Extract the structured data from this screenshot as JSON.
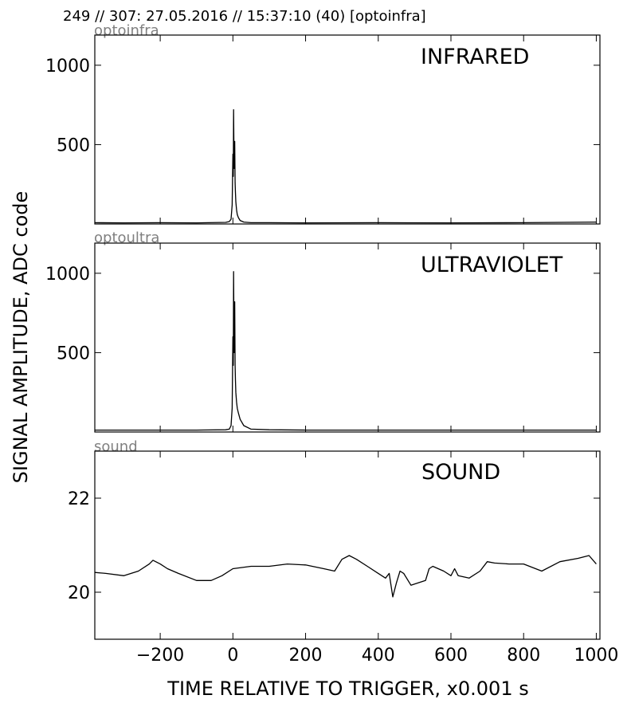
{
  "header": "249 // 307:   27.05.2016 // 15:37:10 (40)  [optoinfra]",
  "xlabel": "TIME RELATIVE TO TRIGGER,   x0.001 s",
  "ylabel": "SIGNAL AMPLITUDE,  ADC code",
  "chart_data": [
    {
      "type": "line",
      "corner_label": "optoinfra",
      "annotation": "INFRARED",
      "xlim": [
        -380,
        1010
      ],
      "ylim": [
        0,
        1190
      ],
      "xticks": [
        -200,
        0,
        200,
        400,
        600,
        800,
        1000
      ],
      "yticks": [
        500,
        1000
      ],
      "ytick_labels": [
        "500",
        "1000"
      ],
      "series": [
        {
          "x": [
            -380,
            -300,
            -200,
            -100,
            -20,
            -10,
            -5,
            -2,
            0,
            1,
            2,
            3,
            4,
            5,
            6,
            7,
            8,
            10,
            12,
            15,
            20,
            30,
            50,
            100,
            200,
            400,
            600,
            800,
            1000
          ],
          "y": [
            8,
            7,
            8,
            7,
            10,
            15,
            30,
            120,
            440,
            300,
            720,
            420,
            350,
            520,
            260,
            200,
            140,
            90,
            60,
            40,
            22,
            12,
            8,
            8,
            7,
            8,
            7,
            8,
            12
          ]
        }
      ]
    },
    {
      "type": "line",
      "corner_label": "optoultra",
      "annotation": "ULTRAVIOLET",
      "xlim": [
        -380,
        1010
      ],
      "ylim": [
        0,
        1190
      ],
      "xticks": [
        -200,
        0,
        200,
        400,
        600,
        800,
        1000
      ],
      "yticks": [
        500,
        1000
      ],
      "ytick_labels": [
        "500",
        "1000"
      ],
      "series": [
        {
          "x": [
            -380,
            -300,
            -200,
            -100,
            -20,
            -10,
            -5,
            -2,
            0,
            1,
            2,
            3,
            4,
            5,
            6,
            7,
            8,
            10,
            12,
            15,
            20,
            30,
            50,
            100,
            200,
            400,
            600,
            800,
            1000
          ],
          "y": [
            12,
            12,
            12,
            12,
            14,
            18,
            40,
            150,
            600,
            420,
            1010,
            600,
            500,
            820,
            420,
            330,
            250,
            190,
            150,
            120,
            80,
            40,
            18,
            14,
            12,
            12,
            12,
            12,
            12
          ]
        }
      ]
    },
    {
      "type": "line",
      "corner_label": "sound",
      "annotation": "SOUND",
      "xlim": [
        -380,
        1010
      ],
      "ylim": [
        19,
        23
      ],
      "xticks": [
        -200,
        0,
        200,
        400,
        600,
        800,
        1000
      ],
      "xtick_labels": [
        "−200",
        "0",
        "200",
        "400",
        "600",
        "800",
        "1000"
      ],
      "yticks": [
        20,
        22
      ],
      "ytick_labels": [
        "20",
        "22"
      ],
      "series": [
        {
          "x": [
            -380,
            -350,
            -300,
            -260,
            -230,
            -220,
            -200,
            -180,
            -150,
            -100,
            -60,
            -30,
            0,
            50,
            100,
            150,
            200,
            250,
            280,
            300,
            320,
            340,
            370,
            400,
            420,
            430,
            440,
            450,
            460,
            470,
            490,
            510,
            530,
            540,
            550,
            580,
            600,
            610,
            620,
            650,
            680,
            700,
            720,
            760,
            800,
            850,
            900,
            950,
            980,
            1000
          ],
          "y": [
            20.42,
            20.4,
            20.35,
            20.45,
            20.6,
            20.68,
            20.6,
            20.5,
            20.4,
            20.25,
            20.25,
            20.35,
            20.5,
            20.55,
            20.55,
            20.6,
            20.58,
            20.5,
            20.45,
            20.7,
            20.78,
            20.7,
            20.55,
            20.4,
            20.3,
            20.4,
            19.9,
            20.2,
            20.45,
            20.4,
            20.15,
            20.2,
            20.25,
            20.5,
            20.55,
            20.45,
            20.35,
            20.5,
            20.35,
            20.3,
            20.45,
            20.65,
            20.62,
            20.6,
            20.6,
            20.45,
            20.65,
            20.72,
            20.78,
            20.6
          ]
        }
      ]
    }
  ]
}
